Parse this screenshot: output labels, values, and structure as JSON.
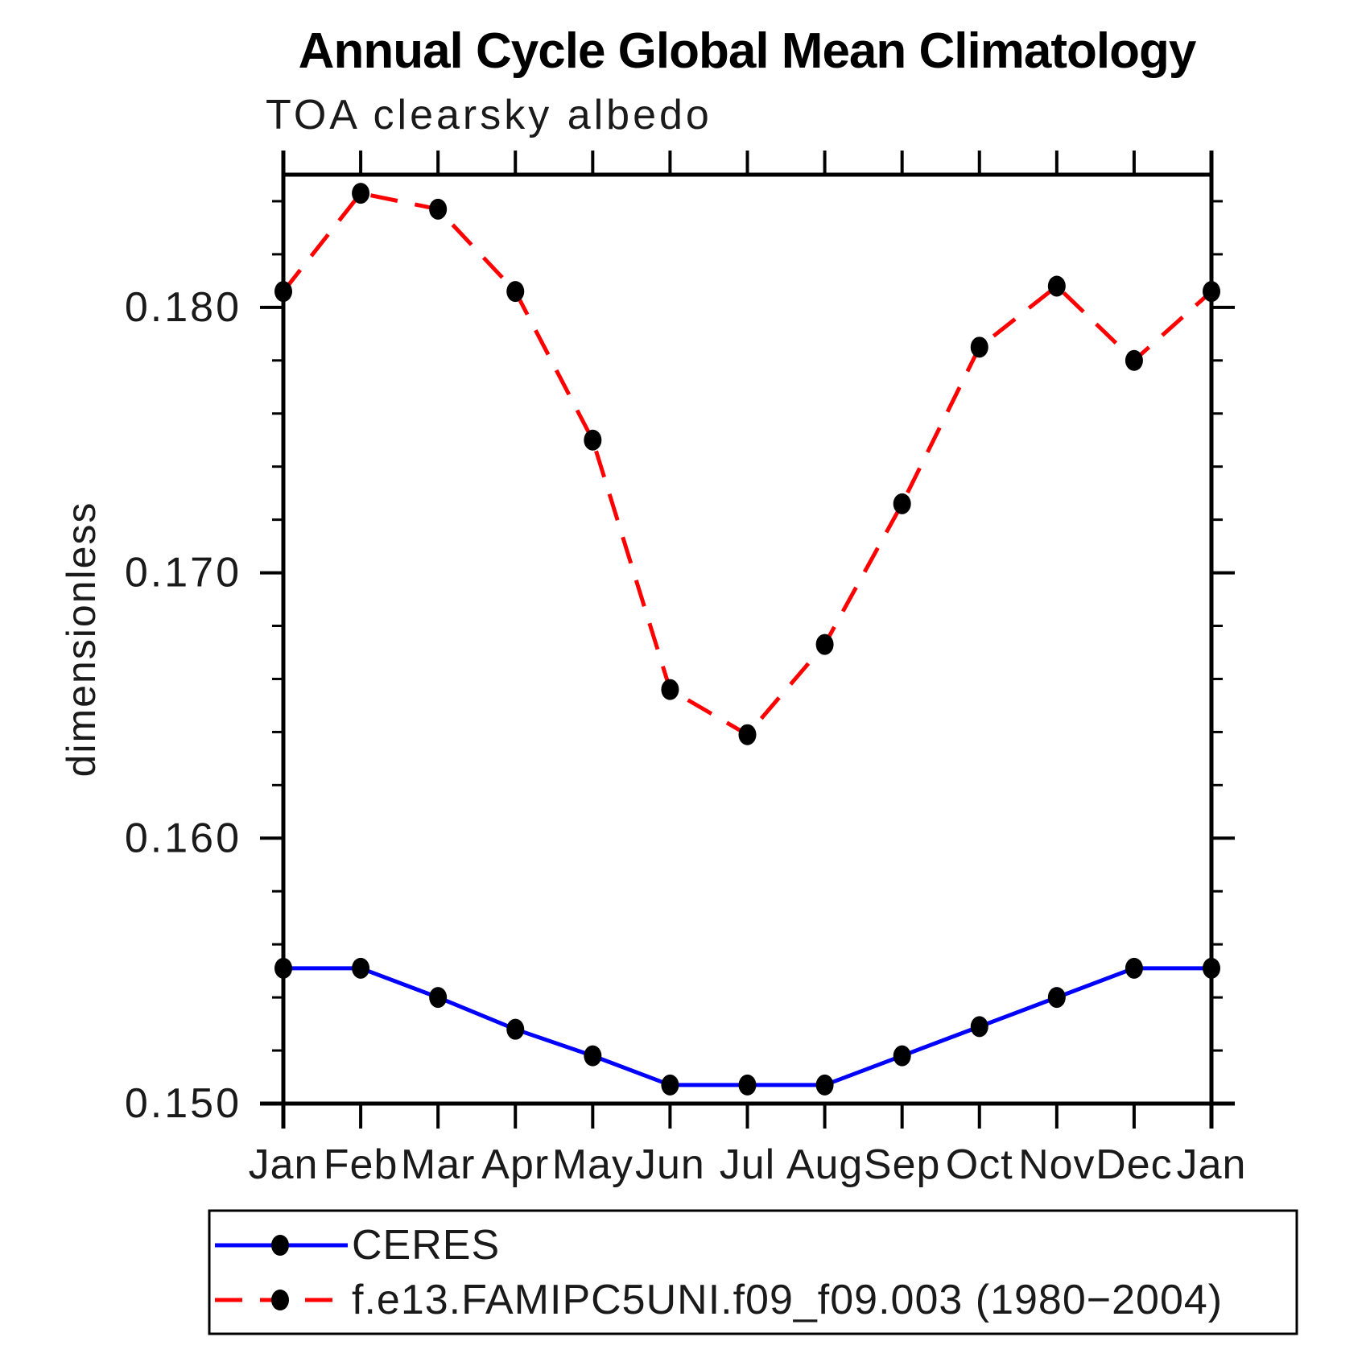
{
  "header": {
    "title": "Annual Cycle Global Mean Climatology",
    "subtitle": "TOA clearsky albedo"
  },
  "chart_data": {
    "type": "line",
    "title": "Annual Cycle Global Mean Climatology",
    "subtitle": "TOA clearsky albedo",
    "ylabel": "dimensionless",
    "xlabel": "",
    "categories": [
      "Jan",
      "Feb",
      "Mar",
      "Apr",
      "May",
      "Jun",
      "Jul",
      "Aug",
      "Sep",
      "Oct",
      "Nov",
      "Dec",
      "Jan"
    ],
    "series": [
      {
        "name": "CERES",
        "color": "#0000ff",
        "line_style": "solid",
        "marker": "filled-circle",
        "marker_color": "#000000",
        "values": [
          0.1551,
          0.1551,
          0.154,
          0.1528,
          0.1518,
          0.1507,
          0.1507,
          0.1507,
          0.1518,
          0.1529,
          0.154,
          0.1551,
          0.1551
        ]
      },
      {
        "name": "f.e13.FAMIPC5UNI.f09_f09.003 (1980−2004)",
        "color": "#ff0000",
        "line_style": "dashed",
        "marker": "filled-circle",
        "marker_color": "#000000",
        "values": [
          0.1806,
          0.1843,
          0.1837,
          0.1806,
          0.175,
          0.1656,
          0.1639,
          0.1673,
          0.1726,
          0.1785,
          0.1808,
          0.178,
          0.1806
        ]
      }
    ],
    "ylim": [
      0.15,
      0.185
    ],
    "ytick_major_values": [
      0.15,
      0.16,
      0.17,
      0.18
    ],
    "ytick_labels": [
      "0.150",
      "0.160",
      "0.170",
      "0.180"
    ],
    "yminor_step": 0.002,
    "grid": "off",
    "axis_color": "#000000",
    "legend_position": "bottom",
    "legend": [
      {
        "label": "CERES"
      },
      {
        "label": "f.e13.FAMIPC5UNI.f09_f09.003 (1980−2004)"
      }
    ]
  }
}
